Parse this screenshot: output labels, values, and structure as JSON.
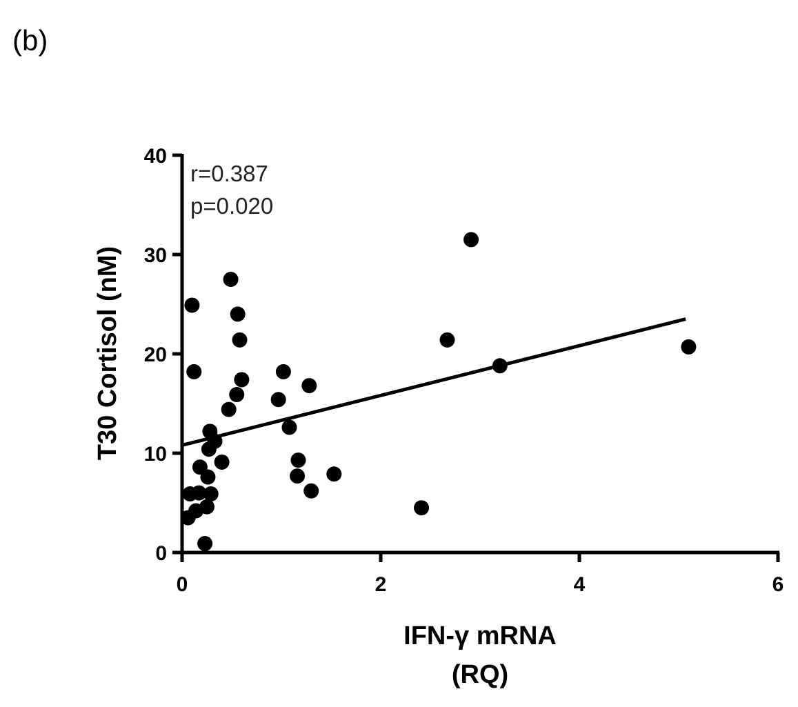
{
  "panel_label": "(b)",
  "chart_data": {
    "type": "scatter",
    "title": "",
    "xlabel_line1": "IFN-γ mRNA",
    "xlabel_line2": "(RQ)",
    "ylabel": "T30 Cortisol (nM)",
    "xlim": [
      0,
      6
    ],
    "ylim": [
      0,
      40
    ],
    "xticks": [
      0,
      2,
      4,
      6
    ],
    "yticks": [
      0,
      10,
      20,
      30,
      40
    ],
    "grid": false,
    "annotations": {
      "r": "r=0.387",
      "p": "p=0.020"
    },
    "points": [
      {
        "x": 0.1,
        "y": 24.9
      },
      {
        "x": 0.12,
        "y": 18.2
      },
      {
        "x": 0.08,
        "y": 5.9
      },
      {
        "x": 0.06,
        "y": 3.5
      },
      {
        "x": 0.14,
        "y": 4.2
      },
      {
        "x": 0.17,
        "y": 6.0
      },
      {
        "x": 0.18,
        "y": 8.6
      },
      {
        "x": 0.23,
        "y": 0.9
      },
      {
        "x": 0.25,
        "y": 4.6
      },
      {
        "x": 0.26,
        "y": 7.6
      },
      {
        "x": 0.27,
        "y": 10.4
      },
      {
        "x": 0.28,
        "y": 12.2
      },
      {
        "x": 0.29,
        "y": 5.9
      },
      {
        "x": 0.33,
        "y": 11.2
      },
      {
        "x": 0.4,
        "y": 9.1
      },
      {
        "x": 0.47,
        "y": 14.4
      },
      {
        "x": 0.49,
        "y": 27.5
      },
      {
        "x": 0.55,
        "y": 15.9
      },
      {
        "x": 0.56,
        "y": 24.0
      },
      {
        "x": 0.58,
        "y": 21.4
      },
      {
        "x": 0.6,
        "y": 17.4
      },
      {
        "x": 0.97,
        "y": 15.4
      },
      {
        "x": 1.02,
        "y": 18.2
      },
      {
        "x": 1.08,
        "y": 12.6
      },
      {
        "x": 1.17,
        "y": 9.3
      },
      {
        "x": 1.16,
        "y": 7.7
      },
      {
        "x": 1.28,
        "y": 16.8
      },
      {
        "x": 1.3,
        "y": 6.2
      },
      {
        "x": 1.53,
        "y": 7.9
      },
      {
        "x": 2.41,
        "y": 4.5
      },
      {
        "x": 2.67,
        "y": 21.4
      },
      {
        "x": 2.91,
        "y": 31.5
      },
      {
        "x": 3.2,
        "y": 18.8
      },
      {
        "x": 5.1,
        "y": 20.7
      }
    ],
    "regression_line": {
      "x": [
        0.0,
        5.07
      ],
      "y": [
        10.8,
        23.5
      ]
    },
    "marker_color": "#000000",
    "line_color": "#000000"
  }
}
